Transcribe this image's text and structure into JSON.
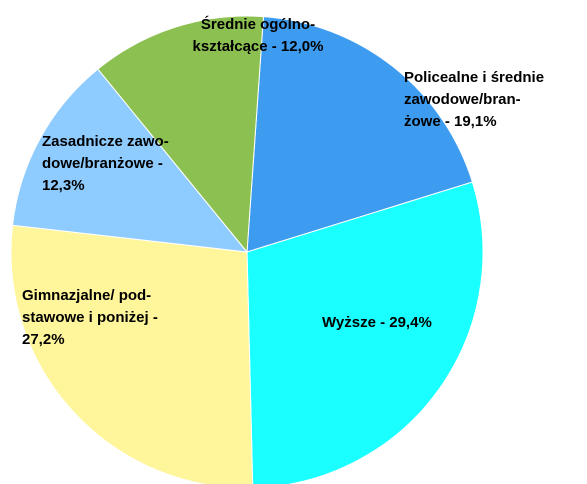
{
  "chart_data": {
    "type": "pie",
    "labels": [
      [
        "Policealne i średnie",
        "zawodowe/bran-",
        "żowe - 19,1%"
      ],
      [
        "Wyższe - 29,4%"
      ],
      [
        "Gimnazjalne/ pod-",
        "stawowe i poniżej -",
        "27,2%"
      ],
      [
        "Zasadnicze zawo-",
        "dowe/branżowe -",
        "12,3%"
      ],
      [
        "Średnie ogólno-",
        "kształcące - 12,0%"
      ]
    ],
    "values": [
      19.1,
      29.4,
      27.2,
      12.3,
      12.0
    ],
    "colors": [
      "#3d9cf0",
      "#1affff",
      "#fff59a",
      "#8ecbff",
      "#8cc152"
    ]
  }
}
